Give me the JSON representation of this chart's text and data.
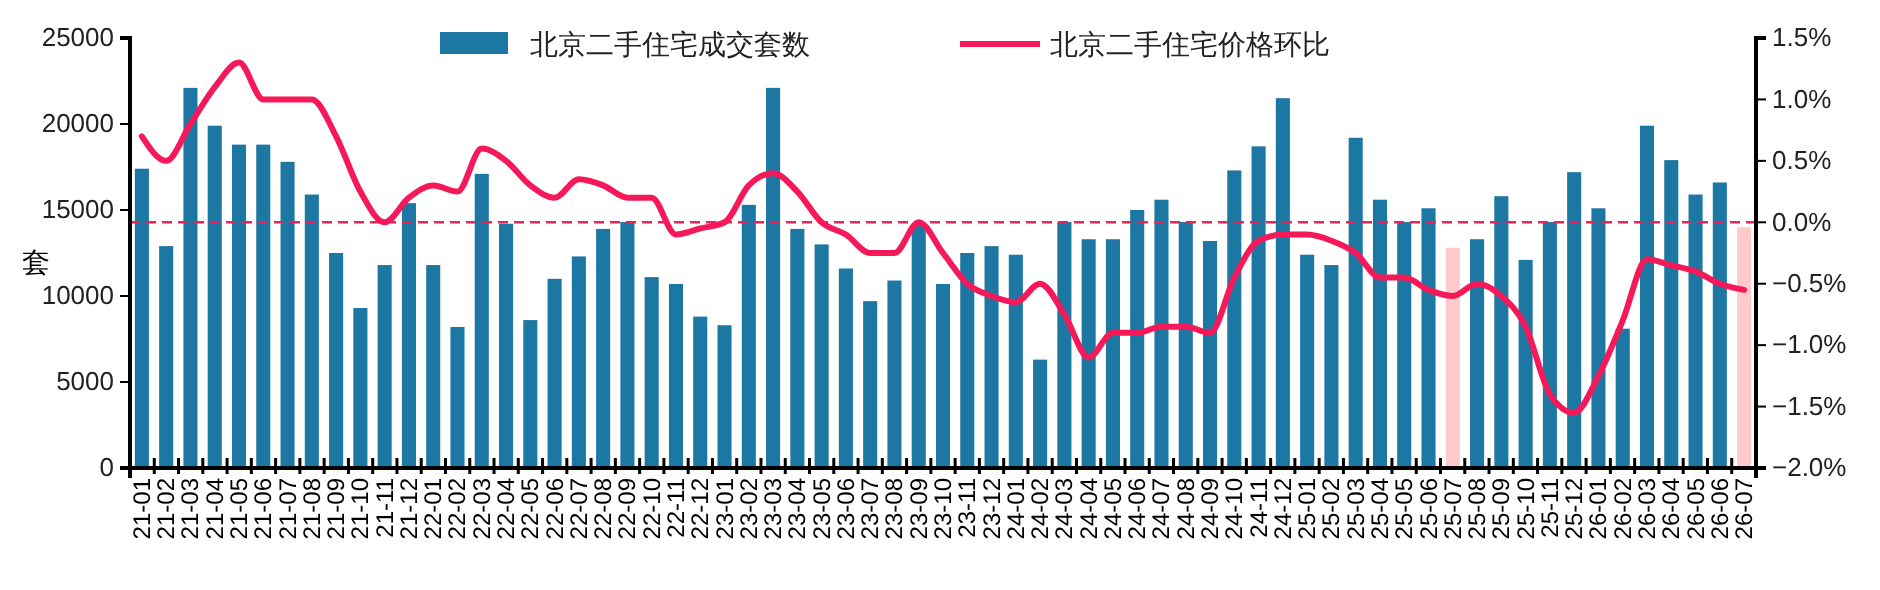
{
  "chart_data": {
    "type": "bar",
    "ylabel": "套",
    "categories": [
      "21-01",
      "21-02",
      "21-03",
      "21-04",
      "21-05",
      "21-06",
      "21-07",
      "21-08",
      "21-09",
      "21-10",
      "21-11",
      "21-12",
      "22-01",
      "22-02",
      "22-03",
      "22-04",
      "22-05",
      "22-06",
      "22-07",
      "22-08",
      "22-09",
      "22-10",
      "22-11",
      "22-12",
      "23-01",
      "23-02",
      "23-03",
      "23-04",
      "23-05",
      "23-06",
      "23-07",
      "23-08",
      "23-09",
      "23-10",
      "23-11",
      "23-12",
      "24-01",
      "24-02",
      "24-03",
      "24-04",
      "24-05",
      "24-06",
      "24-07",
      "24-08",
      "24-09",
      "24-10",
      "24-11",
      "24-12",
      "25-01",
      "25-02",
      "25-03",
      "25-04",
      "25-05",
      "25-06",
      "25-07",
      "25-08",
      "25-09",
      "25-10",
      "25-11",
      "25-12",
      "26-01",
      "26-02",
      "26-03",
      "26-04",
      "26-05",
      "26-06",
      "26-07"
    ],
    "series": [
      {
        "name": "北京二手住宅成交套数",
        "color": "#1d77a3",
        "colors": [
          "#1d77a3",
          "#1d77a3",
          "#1d77a3",
          "#1d77a3",
          "#1d77a3",
          "#1d77a3",
          "#1d77a3",
          "#1d77a3",
          "#1d77a3",
          "#1d77a3",
          "#1d77a3",
          "#1d77a3",
          "#1d77a3",
          "#1d77a3",
          "#1d77a3",
          "#1d77a3",
          "#1d77a3",
          "#1d77a3",
          "#1d77a3",
          "#1d77a3",
          "#1d77a3",
          "#1d77a3",
          "#1d77a3",
          "#1d77a3",
          "#1d77a3",
          "#1d77a3",
          "#1d77a3",
          "#1d77a3",
          "#1d77a3",
          "#1d77a3",
          "#1d77a3",
          "#1d77a3",
          "#1d77a3",
          "#1d77a3",
          "#1d77a3",
          "#1d77a3",
          "#1d77a3",
          "#1d77a3",
          "#1d77a3",
          "#1d77a3",
          "#1d77a3",
          "#1d77a3",
          "#1d77a3",
          "#1d77a3",
          "#1d77a3",
          "#1d77a3",
          "#1d77a3",
          "#1d77a3",
          "#1d77a3",
          "#1d77a3",
          "#1d77a3",
          "#1d77a3",
          "#1d77a3",
          "#1d77a3",
          "#ffcaca",
          "#1d77a3",
          "#1d77a3",
          "#1d77a3",
          "#1d77a3",
          "#1d77a3",
          "#1d77a3",
          "#1d77a3",
          "#1d77a3",
          "#1d77a3",
          "#1d77a3",
          "#1d77a3",
          "#ffcaca"
        ],
        "values": [
          17400,
          12900,
          22100,
          19900,
          18800,
          18800,
          17800,
          15900,
          12500,
          9300,
          11800,
          15400,
          11800,
          8200,
          17100,
          14200,
          8600,
          11000,
          12300,
          13900,
          14300,
          11100,
          10700,
          8800,
          8300,
          15300,
          22100,
          13900,
          13000,
          11600,
          9700,
          10900,
          14200,
          10700,
          12500,
          12900,
          12400,
          6300,
          14300,
          13300,
          13300,
          15000,
          15600,
          14300,
          13200,
          17300,
          18700,
          21500,
          12400,
          11800,
          19200,
          15600,
          14300,
          15100,
          12800,
          13300,
          15800,
          12100,
          14300,
          17200,
          15100,
          8100,
          19900,
          17900,
          15900,
          16600,
          14000
        ]
      },
      {
        "name": "北京二手住宅价格环比",
        "type": "line",
        "axis": "y2",
        "color": "#f5195a",
        "values": [
          0.7,
          0.5,
          0.8,
          1.1,
          1.3,
          1.0,
          1.0,
          1.0,
          0.7,
          0.25,
          0.0,
          0.2,
          0.3,
          0.25,
          0.6,
          0.5,
          0.3,
          0.2,
          0.35,
          0.3,
          0.2,
          0.2,
          -0.1,
          -0.05,
          0.0,
          0.3,
          0.4,
          0.25,
          0.0,
          -0.1,
          -0.25,
          -0.25,
          0.0,
          -0.25,
          -0.5,
          -0.6,
          -0.65,
          -0.5,
          -0.75,
          -1.1,
          -0.9,
          -0.9,
          -0.85,
          -0.85,
          -0.9,
          -0.45,
          -0.15,
          -0.1,
          -0.1,
          -0.15,
          -0.25,
          -0.45,
          -0.45,
          -0.55,
          -0.6,
          -0.5,
          -0.6,
          -0.85,
          -1.4,
          -1.55,
          -1.25,
          -0.8,
          -0.3,
          -0.35,
          -0.4,
          -0.5,
          -0.55
        ]
      }
    ],
    "ylim": [
      0,
      25000
    ],
    "yticks": [
      0,
      5000,
      10000,
      15000,
      20000,
      25000
    ],
    "y2lim": [
      -2,
      1.5
    ],
    "y2ticks": [
      {
        "value": 1.5,
        "label": "1.5%"
      },
      {
        "value": 1,
        "label": "1.0%"
      },
      {
        "value": 0.5,
        "label": "0.5%"
      },
      {
        "value": 0,
        "label": "0.0%"
      },
      {
        "value": -0.5,
        "label": "−0.5%"
      },
      {
        "value": -1,
        "label": "−1.0%"
      },
      {
        "value": -1.5,
        "label": "−1.5%"
      },
      {
        "value": -2,
        "label": "−2.0%"
      }
    ],
    "ref_lines": [
      {
        "axis": "y2",
        "value": 0,
        "color": "#e8245a",
        "line_style": "dashed"
      }
    ],
    "legend": "top",
    "grid": false
  }
}
